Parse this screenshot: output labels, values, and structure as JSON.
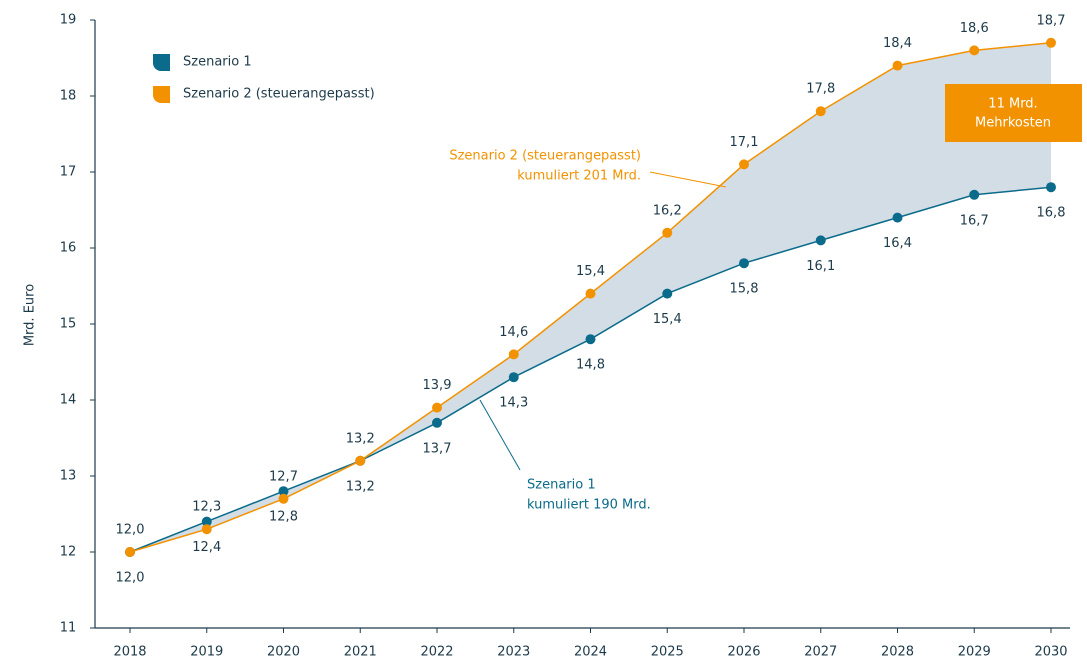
{
  "chart_data": {
    "type": "line",
    "y_label": "Mrd. Euro",
    "categories": [
      "2018",
      "2019",
      "2020",
      "2021",
      "2022",
      "2023",
      "2024",
      "2025",
      "2026",
      "2027",
      "2028",
      "2029",
      "2030"
    ],
    "series": [
      {
        "name": "Szenario 1",
        "color": "#0b6b8a",
        "values": [
          12.0,
          12.4,
          12.8,
          13.2,
          13.7,
          14.3,
          14.8,
          15.4,
          15.8,
          16.1,
          16.4,
          16.7,
          16.8
        ],
        "value_labels": [
          "12,0",
          "12,4",
          "12,8",
          "13,2",
          "13,7",
          "14,3",
          "14,8",
          "15,4",
          "15,8",
          "16,1",
          "16,4",
          "16,7",
          "16,8"
        ]
      },
      {
        "name": "Szenario 2 (steuerangepasst)",
        "color": "#f39200",
        "values": [
          12.0,
          12.3,
          12.7,
          13.2,
          13.9,
          14.6,
          15.4,
          16.2,
          17.1,
          17.8,
          18.4,
          18.6,
          18.7
        ],
        "value_labels": [
          "12,0",
          "12,3",
          "12,7",
          "13,2",
          "13,9",
          "14,6",
          "15,4",
          "16,2",
          "17,1",
          "17,8",
          "18,4",
          "18,6",
          "18,7"
        ]
      }
    ],
    "band_color": "#d3dde6",
    "ylim": [
      11,
      19
    ],
    "yticks": [
      11,
      12,
      13,
      14,
      15,
      16,
      17,
      18,
      19
    ],
    "legend": "top-left",
    "annotations": [
      {
        "text": [
          "Szenario 2 (steuerangepasst)",
          "kumuliert 201 Mrd."
        ],
        "color": "#f39200"
      },
      {
        "text": [
          "Szenario 1",
          "kumuliert 190 Mrd."
        ],
        "color": "#0b6b8a"
      },
      {
        "text": [
          "11 Mrd.",
          "Mehrkosten"
        ],
        "color": "#f39200"
      }
    ]
  }
}
